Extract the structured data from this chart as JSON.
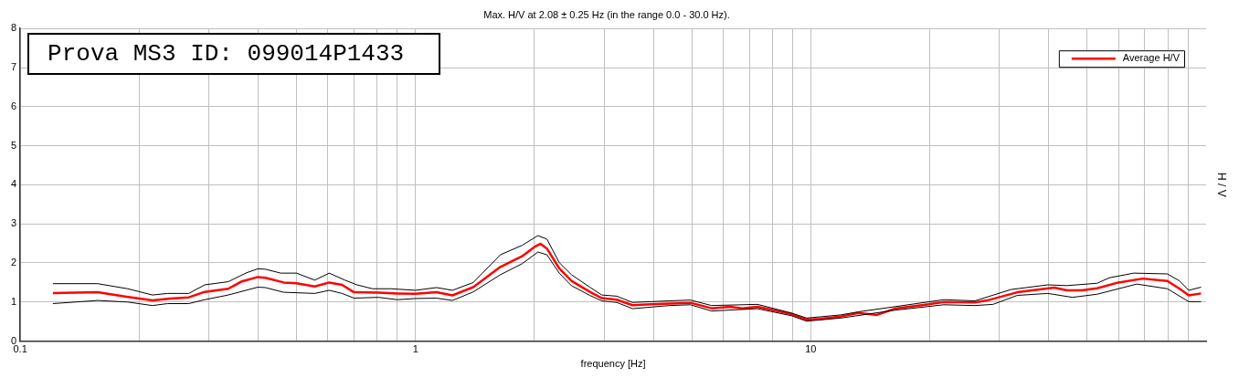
{
  "chart_data": {
    "type": "line",
    "title": "Max. H/V at 2.08 ± 0.25 Hz (in the range 0.0 - 30.0 Hz).",
    "xlabel": "frequency [Hz]",
    "ylabel": "H / V",
    "annotations": [
      "Prova MS3 ID: 099014P1433"
    ],
    "log": "x",
    "xlim": [
      0.1,
      100
    ],
    "xticks": [
      0.1,
      {
        "value": 0.2,
        "label": null
      },
      {
        "value": 0.3,
        "label": null
      },
      {
        "value": 0.4,
        "label": null
      },
      {
        "value": 0.5,
        "label": null
      },
      {
        "value": 0.6,
        "label": null
      },
      {
        "value": 0.7,
        "label": null
      },
      {
        "value": 0.8,
        "label": null
      },
      {
        "value": 0.9,
        "label": null
      },
      1,
      {
        "value": 2,
        "label": null
      },
      {
        "value": 3,
        "label": null
      },
      {
        "value": 4,
        "label": null
      },
      {
        "value": 5,
        "label": null
      },
      {
        "value": 6,
        "label": null
      },
      {
        "value": 7,
        "label": null
      },
      {
        "value": 8,
        "label": null
      },
      {
        "value": 9,
        "label": null
      },
      10,
      {
        "value": 20,
        "label": null
      },
      {
        "value": 30,
        "label": null
      },
      {
        "value": 40,
        "label": null
      },
      {
        "value": 50,
        "label": null
      },
      {
        "value": 60,
        "label": null
      },
      {
        "value": 70,
        "label": null
      },
      {
        "value": 80,
        "label": null
      },
      {
        "value": 90,
        "label": null
      }
    ],
    "ylim": [
      0,
      8
    ],
    "yticks": [
      0,
      1,
      2,
      3,
      4,
      5,
      6,
      7,
      8
    ],
    "grid": true,
    "legend": "top right",
    "line_style": "solid",
    "marker": "none",
    "series": [
      {
        "color": "#000000",
        "x": [
          0.121,
          0.157,
          0.187,
          0.216,
          0.236,
          0.267,
          0.293,
          0.336,
          0.374,
          0.399,
          0.417,
          0.456,
          0.5,
          0.556,
          0.605,
          0.663,
          0.711,
          0.778,
          0.866,
          1.0,
          1.13,
          1.24,
          1.4,
          1.64,
          1.86,
          2.04,
          2.15,
          2.31,
          2.48,
          2.76,
          2.96,
          3.23,
          3.54,
          4.38,
          4.96,
          5.61,
          7.33,
          8.93,
          9.76,
          11.9,
          13.2,
          16.3,
          21.7,
          26.0,
          32.1,
          39.8,
          44.4,
          53.0,
          56.9,
          65.6,
          79.8,
          85.7,
          90.4,
          97.1
        ],
        "values": [
          1.47,
          1.47,
          1.34,
          1.18,
          1.22,
          1.22,
          1.44,
          1.52,
          1.75,
          1.85,
          1.84,
          1.74,
          1.74,
          1.56,
          1.74,
          1.56,
          1.44,
          1.34,
          1.34,
          1.3,
          1.37,
          1.3,
          1.5,
          2.21,
          2.45,
          2.7,
          2.61,
          2.01,
          1.7,
          1.38,
          1.18,
          1.15,
          0.99,
          1.03,
          1.05,
          0.91,
          0.94,
          0.72,
          0.59,
          0.67,
          0.75,
          0.88,
          1.06,
          1.03,
          1.32,
          1.44,
          1.42,
          1.48,
          1.62,
          1.74,
          1.72,
          1.54,
          1.3,
          1.38
        ]
      },
      {
        "color": "#000000",
        "x": [
          0.121,
          0.157,
          0.187,
          0.216,
          0.236,
          0.267,
          0.293,
          0.336,
          0.399,
          0.417,
          0.464,
          0.556,
          0.605,
          0.652,
          0.699,
          0.807,
          0.899,
          1.0,
          1.13,
          1.24,
          1.4,
          1.64,
          1.86,
          2.04,
          2.15,
          2.31,
          2.48,
          2.76,
          2.96,
          3.23,
          3.54,
          4.38,
          4.96,
          5.61,
          7.33,
          8.93,
          9.76,
          11.9,
          16.3,
          21.7,
          26.0,
          28.9,
          33.3,
          39.8,
          45.9,
          53.0,
          66.8,
          79.8,
          90.4,
          97.1
        ],
        "values": [
          0.96,
          1.04,
          1.0,
          0.91,
          0.96,
          0.96,
          1.06,
          1.18,
          1.38,
          1.37,
          1.25,
          1.22,
          1.3,
          1.22,
          1.1,
          1.12,
          1.06,
          1.09,
          1.1,
          1.04,
          1.26,
          1.7,
          1.98,
          2.28,
          2.21,
          1.74,
          1.42,
          1.17,
          1.03,
          0.99,
          0.83,
          0.91,
          0.93,
          0.77,
          0.83,
          0.65,
          0.51,
          0.59,
          0.79,
          0.93,
          0.91,
          0.94,
          1.17,
          1.22,
          1.12,
          1.2,
          1.46,
          1.34,
          1.01,
          1.01
        ]
      },
      {
        "name": "Average H/V",
        "color": "#ff0000",
        "x": [
          0.121,
          0.157,
          0.184,
          0.216,
          0.24,
          0.267,
          0.293,
          0.336,
          0.362,
          0.399,
          0.417,
          0.464,
          0.5,
          0.556,
          0.605,
          0.652,
          0.699,
          0.807,
          0.899,
          1.0,
          1.13,
          1.24,
          1.4,
          1.64,
          1.86,
          2.0,
          2.07,
          2.15,
          2.31,
          2.48,
          2.76,
          2.96,
          3.23,
          3.54,
          3.93,
          4.38,
          4.96,
          5.61,
          6.25,
          6.71,
          7.33,
          8.31,
          8.93,
          9.76,
          10.5,
          11.9,
          13.2,
          14.7,
          16.3,
          19.5,
          21.7,
          26.0,
          27.9,
          33.3,
          41.3,
          44.4,
          48.5,
          53.0,
          60.0,
          69.2,
          79.8,
          85.7,
          90.4,
          97.1
        ],
        "values": [
          1.23,
          1.25,
          1.14,
          1.04,
          1.09,
          1.12,
          1.26,
          1.34,
          1.52,
          1.64,
          1.62,
          1.5,
          1.48,
          1.4,
          1.5,
          1.44,
          1.25,
          1.24,
          1.22,
          1.21,
          1.25,
          1.17,
          1.38,
          1.9,
          2.17,
          2.41,
          2.49,
          2.37,
          1.86,
          1.54,
          1.26,
          1.1,
          1.06,
          0.92,
          0.94,
          0.96,
          0.98,
          0.84,
          0.88,
          0.84,
          0.88,
          0.76,
          0.69,
          0.55,
          0.57,
          0.63,
          0.72,
          0.67,
          0.83,
          0.93,
          1.0,
          0.99,
          1.04,
          1.25,
          1.37,
          1.3,
          1.3,
          1.35,
          1.5,
          1.6,
          1.54,
          1.34,
          1.17,
          1.22
        ]
      }
    ]
  }
}
